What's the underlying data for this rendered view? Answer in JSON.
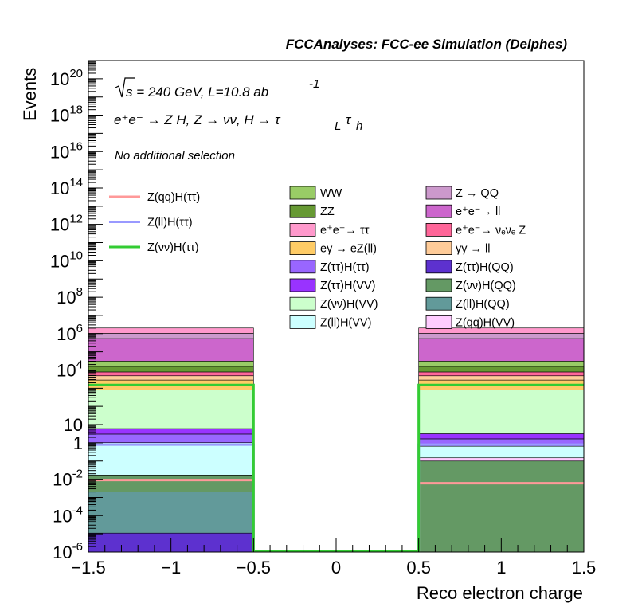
{
  "chart_data": {
    "type": "bar",
    "header": "FCCAnalyses: FCC-ee Simulation (Delphes)",
    "xlabel": "Reco electron charge",
    "ylabel": "Events",
    "xlim": [
      -1.5,
      1.5
    ],
    "ylim": [
      1e-06,
      1e+21
    ],
    "ylog": true,
    "grid": false,
    "x_ticks": [
      "−1.5",
      "−1",
      "−0.5",
      "0",
      "0.5",
      "1",
      "1.5"
    ],
    "y_ticks": [
      {
        "exp": null,
        "text": "1"
      },
      {
        "exp": "-6",
        "text": "10"
      },
      {
        "exp": "-4",
        "text": "10"
      },
      {
        "exp": "-2",
        "text": "10"
      },
      {
        "exp": null,
        "text": "10"
      },
      {
        "exp": "4",
        "text": "10"
      },
      {
        "exp": "6",
        "text": "10"
      },
      {
        "exp": "8",
        "text": "10"
      },
      {
        "exp": "10",
        "text": "10"
      },
      {
        "exp": "12",
        "text": "10"
      },
      {
        "exp": "14",
        "text": "10"
      },
      {
        "exp": "16",
        "text": "10"
      },
      {
        "exp": "18",
        "text": "10"
      },
      {
        "exp": "20",
        "text": "10"
      }
    ],
    "annotations": {
      "line1_a": "s = 240 GeV, L=10.8 ab",
      "line1_sup": "-1",
      "line2": "e⁺e⁻ → Z H, Z → νν, H → τ",
      "line2_sub1": "L",
      "line2_tau": "τ",
      "line2_sub2": "h",
      "line3": "No additional selection"
    },
    "bins": [
      {
        "low": -1.5,
        "high": -0.5
      },
      {
        "low": -0.5,
        "high": 0.5
      },
      {
        "low": 0.5,
        "high": 1.5
      }
    ],
    "stack": [
      {
        "name": "Z(ττ)H(QQ)",
        "color": "#5d31cf",
        "values": [
          1e-05,
          0,
          0
        ]
      },
      {
        "name": "Z(ll)H(QQ)",
        "color": "#629a9a",
        "values": [
          0.002,
          0,
          0
        ]
      },
      {
        "name": "Z(νν)H(QQ)",
        "color": "#649964",
        "values": [
          0.015,
          0,
          0.1
        ]
      },
      {
        "name": "Z(qq)H(VV)",
        "color": "#ffccff",
        "values": [
          0,
          0,
          0.05
        ]
      },
      {
        "name": "Z(ll)H(VV)",
        "color": "#ccffff",
        "values": [
          1.0,
          0,
          0.5
        ]
      },
      {
        "name": "Z(ττ)H(ττ)",
        "color": "#9966ff",
        "values": [
          2.0,
          0,
          1.0
        ]
      },
      {
        "name": "Z(ττ)H(VV)",
        "color": "#9933ff",
        "values": [
          3.0,
          0,
          1.5
        ]
      },
      {
        "name": "Z(νν)H(VV)",
        "color": "#ccffcc",
        "values": [
          800,
          0,
          800
        ]
      },
      {
        "name": "eγ → eZ(ll)",
        "color": "#ffcc66",
        "values": [
          2000,
          0,
          2000
        ]
      },
      {
        "name": "γγ → ll",
        "color": "#ffcc99",
        "values": [
          2000,
          0,
          2000
        ]
      },
      {
        "name": "e⁺e⁻→ νₑνₑ Z",
        "color": "#ff6699",
        "values": [
          3000,
          0,
          3000
        ]
      },
      {
        "name": "ZZ",
        "color": "#669933",
        "values": [
          8000,
          0,
          8000
        ]
      },
      {
        "name": "WW",
        "color": "#99cc66",
        "values": [
          15000,
          0,
          15000
        ]
      },
      {
        "name": "e⁺e⁻→ ll",
        "color": "#cc66cc",
        "values": [
          500000,
          0,
          500000
        ]
      },
      {
        "name": "Z → QQ",
        "color": "#cc99cc",
        "values": [
          500000,
          0,
          500000
        ]
      },
      {
        "name": "e⁺e⁻→ ττ",
        "color": "#ff99cc",
        "values": [
          1000000,
          0,
          1000000
        ]
      }
    ],
    "signals": [
      {
        "name": "Z(qq)H(ττ)",
        "color": "#ff9999",
        "values": [
          0.009,
          0,
          0.006
        ]
      },
      {
        "name": "Z(ll)H(ττ)",
        "color": "#9999ff",
        "values": [
          0.8,
          0,
          0.8
        ]
      },
      {
        "name": "Z(νν)H(ττ)",
        "color": "#33cc33",
        "values": [
          1500,
          0,
          1500
        ]
      }
    ],
    "legend_signal_labels": [
      "Z(qq)H(ττ)",
      "Z(ll)H(ττ)",
      "Z(νν)H(ττ)"
    ],
    "legend_col1": [
      "WW",
      "ZZ",
      "e⁺e⁻→ ττ",
      "eγ → eZ(ll)",
      "Z(ττ)H(ττ)",
      "Z(ττ)H(VV)",
      "Z(νν)H(VV)",
      "Z(ll)H(VV)"
    ],
    "legend_col2": [
      "Z → QQ",
      "e⁺e⁻→ ll",
      "e⁺e⁻→ νₑνₑ Z",
      "γγ → ll",
      "Z(ττ)H(QQ)",
      "Z(νν)H(QQ)",
      "Z(ll)H(QQ)",
      "Z(qq)H(VV)"
    ],
    "legend_colors": {
      "WW": "#99cc66",
      "ZZ": "#669933",
      "e⁺e⁻→ ττ": "#ff99cc",
      "eγ → eZ(ll)": "#ffcc66",
      "Z(ττ)H(ττ)": "#9966ff",
      "Z(ττ)H(VV)": "#9933ff",
      "Z(νν)H(VV)": "#ccffcc",
      "Z(ll)H(VV)": "#ccffff",
      "Z → QQ": "#cc99cc",
      "e⁺e⁻→ ll": "#cc66cc",
      "e⁺e⁻→ νₑνₑ Z": "#ff6699",
      "γγ → ll": "#ffcc99",
      "Z(ττ)H(QQ)": "#5d31cf",
      "Z(νν)H(QQ)": "#649964",
      "Z(ll)H(QQ)": "#629a9a",
      "Z(qq)H(VV)": "#ffccff"
    }
  }
}
